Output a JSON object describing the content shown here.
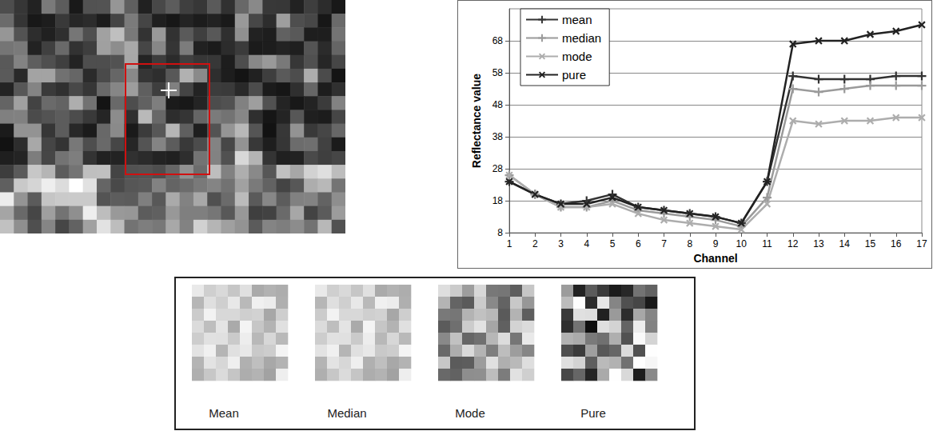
{
  "chart_data": {
    "type": "line",
    "xlabel": "Channel",
    "ylabel": "Reflectance value",
    "xlim": [
      1,
      17
    ],
    "xticks": [
      1,
      2,
      3,
      4,
      5,
      6,
      7,
      8,
      9,
      10,
      11,
      12,
      13,
      14,
      15,
      16,
      17
    ],
    "ylim": [
      8,
      78
    ],
    "yticks": [
      8,
      18,
      28,
      38,
      48,
      58,
      68
    ],
    "grid": true,
    "legend": "upper left",
    "x": [
      1,
      2,
      3,
      4,
      5,
      6,
      7,
      8,
      9,
      10,
      11,
      12,
      13,
      14,
      15,
      16,
      17
    ],
    "series": [
      {
        "name": "mean",
        "color": "#333333",
        "marker": "plus",
        "values": [
          24,
          20,
          17,
          18,
          20,
          16,
          15,
          14,
          13,
          11,
          24,
          57,
          56,
          56,
          56,
          57,
          57
        ]
      },
      {
        "name": "median",
        "color": "#9a9a9a",
        "marker": "plus",
        "values": [
          26,
          20,
          16,
          16,
          18,
          15,
          14,
          13,
          12,
          10,
          19,
          53,
          52,
          53,
          54,
          54,
          54
        ]
      },
      {
        "name": "mode",
        "color": "#adadad",
        "marker": "x",
        "values": [
          26,
          20,
          16,
          16,
          17,
          14,
          12,
          11,
          10,
          9,
          17,
          43,
          42,
          43,
          43,
          44,
          44
        ]
      },
      {
        "name": "pure",
        "color": "#222222",
        "marker": "x",
        "values": [
          24,
          20,
          17,
          17,
          19,
          16,
          15,
          14,
          13,
          11,
          24,
          67,
          68,
          68,
          70,
          71,
          73
        ]
      }
    ]
  },
  "patches": {
    "labels": [
      "Mean",
      "Median",
      "Mode",
      "Pure"
    ]
  }
}
